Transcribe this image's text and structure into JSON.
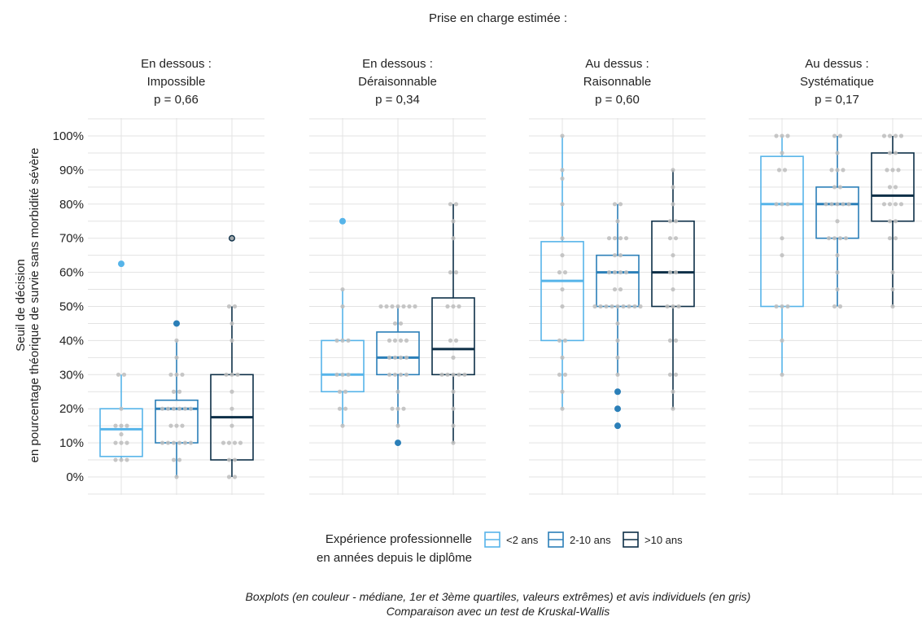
{
  "chart_data": {
    "type": "boxplot",
    "title": "Prise en charge estimée :",
    "ylabel_line1": "Seuil de décision",
    "ylabel_line2": "en pourcentage théorique de survie sans morbidité sévère",
    "y_unit": "%",
    "ylim": [
      0,
      100
    ],
    "yticks": [
      "0%",
      "10%",
      "20%",
      "30%",
      "40%",
      "50%",
      "60%",
      "70%",
      "80%",
      "90%",
      "100%"
    ],
    "grid": true,
    "legend": {
      "position": "bottom",
      "title_line1": "Expérience professionnelle",
      "title_line2": "en années depuis le diplôme",
      "entries": [
        {
          "label": "<2 ans",
          "color": "#56b4e9"
        },
        {
          "label": "2-10 ans",
          "color": "#2b7fb8"
        },
        {
          "label": ">10 ans",
          "color": "#0d2f47"
        }
      ]
    },
    "caption_line1": "Boxplots (en couleur - médiane, 1er et 3ème quartiles, valeurs extrêmes) et avis individuels (en gris)",
    "caption_line2": "Comparaison avec un test de Kruskal-Wallis",
    "point_color": "#bdbdbd",
    "panels": [
      {
        "title_line1": "En dessous :",
        "title_line2": "Impossible",
        "p_value": "p = 0,66",
        "boxes": [
          {
            "group": "<2 ans",
            "min": 5,
            "q1": 6,
            "median": 14,
            "q3": 20,
            "max": 30,
            "outliers": [
              62.5
            ],
            "points": [
              5,
              5,
              5,
              10,
              10,
              10,
              12.5,
              15,
              15,
              15,
              20,
              30,
              30
            ]
          },
          {
            "group": "2-10 ans",
            "min": 0,
            "q1": 10,
            "median": 20,
            "q3": 22.5,
            "max": 40,
            "outliers": [
              45
            ],
            "points": [
              0,
              5,
              5,
              10,
              10,
              10,
              10,
              10,
              10,
              15,
              15,
              15,
              20,
              20,
              20,
              20,
              20,
              20,
              25,
              25,
              30,
              30,
              30,
              35,
              40
            ]
          },
          {
            "group": ">10 ans",
            "min": 0,
            "q1": 5,
            "median": 17.5,
            "q3": 30,
            "max": 50,
            "outliers": [
              70
            ],
            "points": [
              0,
              0,
              5,
              5,
              10,
              10,
              10,
              10,
              15,
              20,
              25,
              30,
              30,
              30,
              40,
              45,
              50,
              50,
              70
            ]
          }
        ]
      },
      {
        "title_line1": "En dessous :",
        "title_line2": "Déraisonnable",
        "p_value": "p = 0,34",
        "boxes": [
          {
            "group": "<2 ans",
            "min": 15,
            "q1": 25,
            "median": 30,
            "q3": 40,
            "max": 55,
            "outliers": [
              75
            ],
            "points": [
              15,
              20,
              20,
              25,
              25,
              30,
              30,
              30,
              40,
              40,
              40,
              50,
              55
            ]
          },
          {
            "group": "2-10 ans",
            "min": 15,
            "q1": 30,
            "median": 35,
            "q3": 42.5,
            "max": 50,
            "outliers": [
              10
            ],
            "points": [
              15,
              20,
              20,
              20,
              25,
              30,
              30,
              30,
              30,
              35,
              35,
              35,
              35,
              40,
              40,
              40,
              40,
              45,
              45,
              50,
              50,
              50,
              50,
              50,
              50,
              50
            ]
          },
          {
            "group": ">10 ans",
            "min": 10,
            "q1": 30,
            "median": 37.5,
            "q3": 52.5,
            "max": 80,
            "outliers": [],
            "points": [
              10,
              15,
              20,
              25,
              30,
              30,
              30,
              30,
              30,
              35,
              40,
              40,
              50,
              50,
              50,
              60,
              60,
              70,
              75,
              80,
              80
            ]
          }
        ]
      },
      {
        "title_line1": "Au dessus :",
        "title_line2": "Raisonnable",
        "p_value": "p = 0,60",
        "boxes": [
          {
            "group": "<2 ans",
            "min": 20,
            "q1": 40,
            "median": 57.5,
            "q3": 69,
            "max": 100,
            "outliers": [],
            "points": [
              20,
              25,
              30,
              30,
              35,
              40,
              40,
              50,
              55,
              60,
              60,
              65,
              70,
              80,
              87.5,
              90,
              100
            ]
          },
          {
            "group": "2-10 ans",
            "min": 30,
            "q1": 50,
            "median": 60,
            "q3": 65,
            "max": 80,
            "outliers": [
              25,
              20,
              15
            ],
            "points": [
              30,
              35,
              40,
              45,
              50,
              50,
              50,
              50,
              50,
              50,
              50,
              50,
              50,
              55,
              55,
              60,
              60,
              60,
              60,
              65,
              65,
              70,
              70,
              70,
              70,
              75,
              80,
              80
            ]
          },
          {
            "group": ">10 ans",
            "min": 20,
            "q1": 50,
            "median": 60,
            "q3": 75,
            "max": 90,
            "outliers": [],
            "points": [
              20,
              25,
              30,
              30,
              40,
              40,
              50,
              50,
              50,
              55,
              60,
              60,
              65,
              70,
              70,
              75,
              75,
              80,
              85,
              90
            ]
          }
        ]
      },
      {
        "title_line1": "Au dessus :",
        "title_line2": "Systématique",
        "p_value": "p = 0,17",
        "boxes": [
          {
            "group": "<2 ans",
            "min": 30,
            "q1": 50,
            "median": 80,
            "q3": 94,
            "max": 100,
            "outliers": [],
            "points": [
              30,
              40,
              50,
              50,
              50,
              65,
              70,
              80,
              80,
              80,
              90,
              90,
              95,
              100,
              100,
              100
            ]
          },
          {
            "group": "2-10 ans",
            "min": 50,
            "q1": 70,
            "median": 80,
            "q3": 85,
            "max": 100,
            "outliers": [],
            "points": [
              50,
              50,
              55,
              60,
              65,
              70,
              70,
              70,
              70,
              75,
              80,
              80,
              80,
              80,
              80,
              85,
              85,
              90,
              90,
              90,
              95,
              100,
              100
            ]
          },
          {
            "group": ">10 ans",
            "min": 50,
            "q1": 75,
            "median": 82.5,
            "q3": 95,
            "max": 100,
            "outliers": [],
            "points": [
              50,
              55,
              60,
              70,
              70,
              75,
              75,
              80,
              80,
              80,
              80,
              85,
              85,
              90,
              90,
              90,
              95,
              95,
              100,
              100,
              100,
              100
            ]
          }
        ]
      }
    ]
  }
}
